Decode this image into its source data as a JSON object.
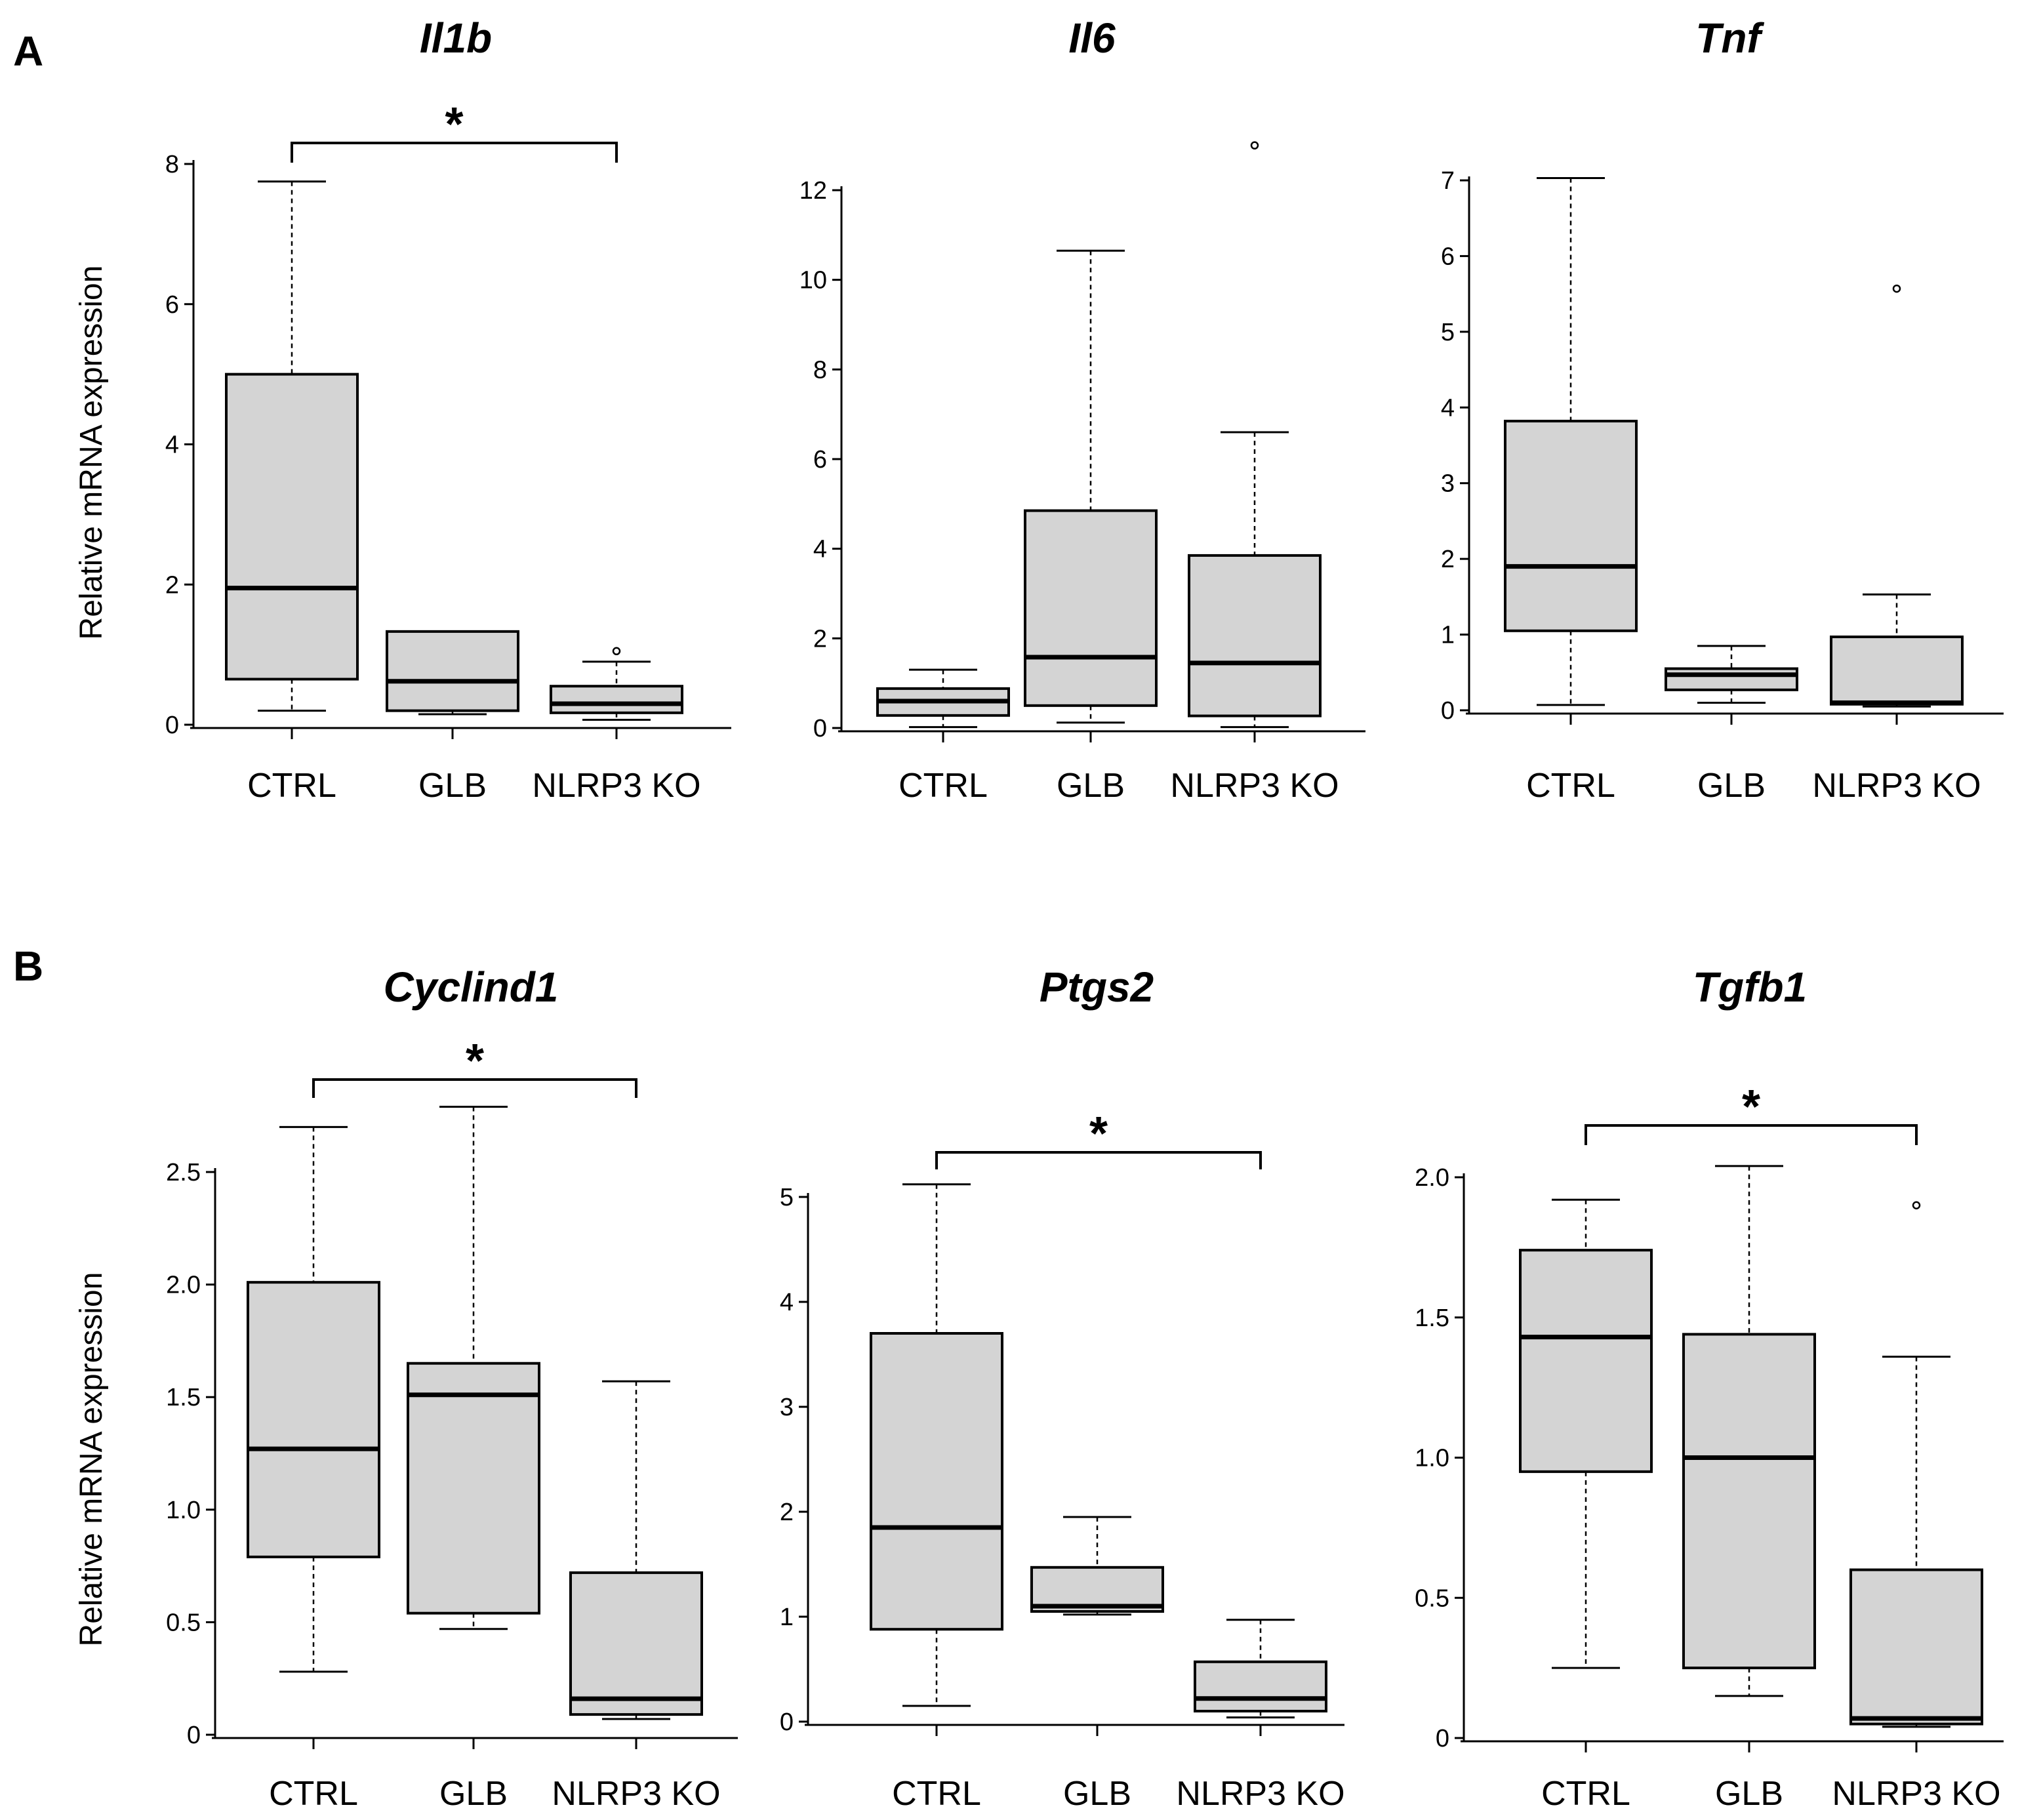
{
  "chart_data": [
    {
      "type": "boxplot",
      "panel": "A",
      "title": "Il1b",
      "ylabel": "Relative mRNA expression",
      "ylim": [
        0,
        8
      ],
      "yticks": [
        "0",
        "2",
        "4",
        "6",
        "8"
      ],
      "categories": [
        "CTRL",
        "GLB",
        "NLRP3 KO"
      ],
      "boxes": [
        {
          "whislo": 0.2,
          "q1": 0.65,
          "med": 1.95,
          "q3": 5.0,
          "whishi": 7.75,
          "fliers": []
        },
        {
          "whislo": 0.15,
          "q1": 0.2,
          "med": 0.62,
          "q3": 1.33,
          "whishi": 1.33,
          "fliers": []
        },
        {
          "whislo": 0.07,
          "q1": 0.17,
          "med": 0.3,
          "q3": 0.55,
          "whishi": 0.9,
          "fliers": [
            1.05
          ]
        }
      ],
      "significance": {
        "label": "*",
        "from": 0,
        "to": 2
      }
    },
    {
      "type": "boxplot",
      "panel": "",
      "title": "Il6",
      "ylabel": "",
      "ylim": [
        0,
        12
      ],
      "yticks": [
        "0",
        "2",
        "4",
        "6",
        "8",
        "10",
        "12"
      ],
      "categories": [
        "CTRL",
        "GLB",
        "NLRP3 KO"
      ],
      "boxes": [
        {
          "whislo": 0.02,
          "q1": 0.28,
          "med": 0.6,
          "q3": 0.88,
          "whishi": 1.3,
          "fliers": []
        },
        {
          "whislo": 0.12,
          "q1": 0.5,
          "med": 1.58,
          "q3": 4.85,
          "whishi": 10.65,
          "fliers": []
        },
        {
          "whislo": 0.02,
          "q1": 0.27,
          "med": 1.45,
          "q3": 3.85,
          "whishi": 6.6,
          "fliers": [
            13.0
          ]
        }
      ]
    },
    {
      "type": "boxplot",
      "panel": "",
      "title": "Tnf",
      "ylabel": "",
      "ylim": [
        0,
        7
      ],
      "yticks": [
        "0",
        "1",
        "2",
        "3",
        "4",
        "5",
        "6",
        "7"
      ],
      "categories": [
        "CTRL",
        "GLB",
        "NLRP3 KO"
      ],
      "boxes": [
        {
          "whislo": 0.07,
          "q1": 1.05,
          "med": 1.9,
          "q3": 3.82,
          "whishi": 7.03,
          "fliers": []
        },
        {
          "whislo": 0.1,
          "q1": 0.27,
          "med": 0.47,
          "q3": 0.55,
          "whishi": 0.85,
          "fliers": []
        },
        {
          "whislo": 0.05,
          "q1": 0.08,
          "med": 0.1,
          "q3": 0.97,
          "whishi": 1.53,
          "fliers": [
            5.57
          ]
        }
      ]
    },
    {
      "type": "boxplot",
      "panel": "B",
      "title": "Cyclind1",
      "ylabel": "Relative mRNA expression",
      "ylim": [
        0,
        2.5
      ],
      "yticks": [
        "0",
        "0.5",
        "1.0",
        "1.5",
        "2.0",
        "2.5"
      ],
      "categories": [
        "CTRL",
        "GLB",
        "NLRP3 KO"
      ],
      "boxes": [
        {
          "whislo": 0.28,
          "q1": 0.79,
          "med": 1.27,
          "q3": 2.01,
          "whishi": 2.7,
          "fliers": []
        },
        {
          "whislo": 0.47,
          "q1": 0.54,
          "med": 1.51,
          "q3": 1.65,
          "whishi": 2.79,
          "fliers": []
        },
        {
          "whislo": 0.07,
          "q1": 0.09,
          "med": 0.16,
          "q3": 0.72,
          "whishi": 1.57,
          "fliers": []
        }
      ],
      "significance": {
        "label": "*",
        "from": 0,
        "to": 2
      }
    },
    {
      "type": "boxplot",
      "panel": "",
      "title": "Ptgs2",
      "ylabel": "",
      "ylim": [
        0,
        5
      ],
      "yticks": [
        "0",
        "1",
        "2",
        "3",
        "4",
        "5"
      ],
      "categories": [
        "CTRL",
        "GLB",
        "NLRP3 KO"
      ],
      "boxes": [
        {
          "whislo": 0.15,
          "q1": 0.88,
          "med": 1.85,
          "q3": 3.7,
          "whishi": 5.12,
          "fliers": []
        },
        {
          "whislo": 1.02,
          "q1": 1.05,
          "med": 1.1,
          "q3": 1.47,
          "whishi": 1.95,
          "fliers": []
        },
        {
          "whislo": 0.04,
          "q1": 0.1,
          "med": 0.22,
          "q3": 0.57,
          "whishi": 0.97,
          "fliers": []
        }
      ],
      "significance": {
        "label": "*",
        "from": 0,
        "to": 2
      }
    },
    {
      "type": "boxplot",
      "panel": "",
      "title": "Tgfb1",
      "ylabel": "",
      "ylim": [
        0,
        2.0
      ],
      "yticks": [
        "0",
        "0.5",
        "1.0",
        "1.5",
        "2.0"
      ],
      "categories": [
        "CTRL",
        "GLB",
        "NLRP3 KO"
      ],
      "boxes": [
        {
          "whislo": 0.25,
          "q1": 0.95,
          "med": 1.43,
          "q3": 1.74,
          "whishi": 1.92,
          "fliers": []
        },
        {
          "whislo": 0.15,
          "q1": 0.25,
          "med": 1.0,
          "q3": 1.44,
          "whishi": 2.04,
          "fliers": []
        },
        {
          "whislo": 0.04,
          "q1": 0.05,
          "med": 0.07,
          "q3": 0.6,
          "whishi": 1.36,
          "fliers": [
            1.9
          ]
        }
      ],
      "significance": {
        "label": "*",
        "from": 0,
        "to": 2
      }
    }
  ],
  "colors": {
    "box_fill": "#d4d4d4",
    "stroke": "#000000"
  }
}
